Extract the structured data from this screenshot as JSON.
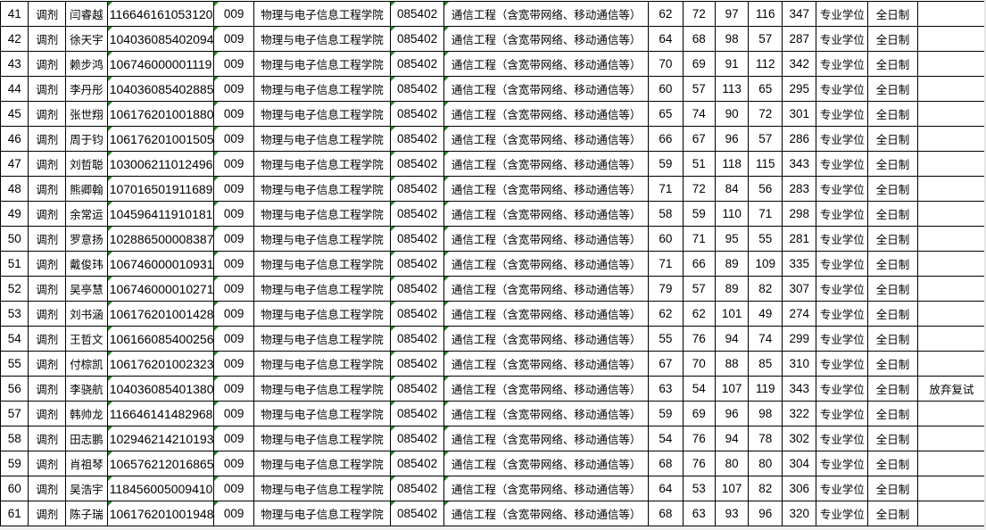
{
  "table": {
    "rows": [
      [
        "41",
        "调剂",
        "闫睿越",
        "116646161053120",
        "009",
        "物理与电子信息工程学院",
        "085402",
        "通信工程（含宽带网络、移动通信等）",
        "62",
        "72",
        "97",
        "116",
        "347",
        "专业学位",
        "全日制",
        ""
      ],
      [
        "42",
        "调剂",
        "徐天宇",
        "104036085402094",
        "009",
        "物理与电子信息工程学院",
        "085402",
        "通信工程（含宽带网络、移动通信等）",
        "64",
        "68",
        "98",
        "57",
        "287",
        "专业学位",
        "全日制",
        ""
      ],
      [
        "43",
        "调剂",
        "赖步鸿",
        "106746000001119",
        "009",
        "物理与电子信息工程学院",
        "085402",
        "通信工程（含宽带网络、移动通信等）",
        "70",
        "69",
        "91",
        "112",
        "342",
        "专业学位",
        "全日制",
        ""
      ],
      [
        "44",
        "调剂",
        "李丹彤",
        "104036085402885",
        "009",
        "物理与电子信息工程学院",
        "085402",
        "通信工程（含宽带网络、移动通信等）",
        "60",
        "57",
        "113",
        "65",
        "295",
        "专业学位",
        "全日制",
        ""
      ],
      [
        "45",
        "调剂",
        "张世翔",
        "106176201001880",
        "009",
        "物理与电子信息工程学院",
        "085402",
        "通信工程（含宽带网络、移动通信等）",
        "65",
        "74",
        "90",
        "72",
        "301",
        "专业学位",
        "全日制",
        ""
      ],
      [
        "46",
        "调剂",
        "周于钧",
        "106176201001505",
        "009",
        "物理与电子信息工程学院",
        "085402",
        "通信工程（含宽带网络、移动通信等）",
        "66",
        "67",
        "96",
        "57",
        "286",
        "专业学位",
        "全日制",
        ""
      ],
      [
        "47",
        "调剂",
        "刘哲聪",
        "103006211012496",
        "009",
        "物理与电子信息工程学院",
        "085402",
        "通信工程（含宽带网络、移动通信等）",
        "59",
        "51",
        "118",
        "115",
        "343",
        "专业学位",
        "全日制",
        ""
      ],
      [
        "48",
        "调剂",
        "熊卿翰",
        "107016501911689",
        "009",
        "物理与电子信息工程学院",
        "085402",
        "通信工程（含宽带网络、移动通信等）",
        "71",
        "72",
        "84",
        "56",
        "283",
        "专业学位",
        "全日制",
        ""
      ],
      [
        "49",
        "调剂",
        "余常运",
        "104596411910181",
        "009",
        "物理与电子信息工程学院",
        "085402",
        "通信工程（含宽带网络、移动通信等）",
        "58",
        "59",
        "110",
        "71",
        "298",
        "专业学位",
        "全日制",
        ""
      ],
      [
        "50",
        "调剂",
        "罗意扬",
        "102886500008387",
        "009",
        "物理与电子信息工程学院",
        "085402",
        "通信工程（含宽带网络、移动通信等）",
        "60",
        "71",
        "95",
        "55",
        "281",
        "专业学位",
        "全日制",
        ""
      ],
      [
        "51",
        "调剂",
        "戴俊玮",
        "106746000010931",
        "009",
        "物理与电子信息工程学院",
        "085402",
        "通信工程（含宽带网络、移动通信等）",
        "71",
        "66",
        "89",
        "109",
        "335",
        "专业学位",
        "全日制",
        ""
      ],
      [
        "52",
        "调剂",
        "吴亭慧",
        "106746000010271",
        "009",
        "物理与电子信息工程学院",
        "085402",
        "通信工程（含宽带网络、移动通信等）",
        "79",
        "57",
        "89",
        "82",
        "307",
        "专业学位",
        "全日制",
        ""
      ],
      [
        "53",
        "调剂",
        "刘书涵",
        "106176201001428",
        "009",
        "物理与电子信息工程学院",
        "085402",
        "通信工程（含宽带网络、移动通信等）",
        "62",
        "62",
        "101",
        "49",
        "274",
        "专业学位",
        "全日制",
        ""
      ],
      [
        "54",
        "调剂",
        "王哲文",
        "106166085400256",
        "009",
        "物理与电子信息工程学院",
        "085402",
        "通信工程（含宽带网络、移动通信等）",
        "55",
        "76",
        "94",
        "74",
        "299",
        "专业学位",
        "全日制",
        ""
      ],
      [
        "55",
        "调剂",
        "付棕凯",
        "106176201002323",
        "009",
        "物理与电子信息工程学院",
        "085402",
        "通信工程（含宽带网络、移动通信等）",
        "67",
        "70",
        "88",
        "85",
        "310",
        "专业学位",
        "全日制",
        ""
      ],
      [
        "56",
        "调剂",
        "李骁航",
        "104036085401380",
        "009",
        "物理与电子信息工程学院",
        "085402",
        "通信工程（含宽带网络、移动通信等）",
        "63",
        "54",
        "107",
        "119",
        "343",
        "专业学位",
        "全日制",
        "放弃复试"
      ],
      [
        "57",
        "调剂",
        "韩帅龙",
        "116646141482968",
        "009",
        "物理与电子信息工程学院",
        "085402",
        "通信工程（含宽带网络、移动通信等）",
        "59",
        "69",
        "96",
        "98",
        "322",
        "专业学位",
        "全日制",
        ""
      ],
      [
        "58",
        "调剂",
        "田志鹏",
        "102946214210193",
        "009",
        "物理与电子信息工程学院",
        "085402",
        "通信工程（含宽带网络、移动通信等）",
        "54",
        "76",
        "94",
        "78",
        "302",
        "专业学位",
        "全日制",
        ""
      ],
      [
        "59",
        "调剂",
        "肖祖琴",
        "106576212016865",
        "009",
        "物理与电子信息工程学院",
        "085402",
        "通信工程（含宽带网络、移动通信等）",
        "68",
        "76",
        "80",
        "80",
        "304",
        "专业学位",
        "全日制",
        ""
      ],
      [
        "60",
        "调剂",
        "吴浩宇",
        "118456005009410",
        "009",
        "物理与电子信息工程学院",
        "085402",
        "通信工程（含宽带网络、移动通信等）",
        "64",
        "53",
        "107",
        "82",
        "306",
        "专业学位",
        "全日制",
        ""
      ],
      [
        "61",
        "调剂",
        "陈子瑞",
        "106176201001948",
        "009",
        "物理与电子信息工程学院",
        "085402",
        "通信工程（含宽带网络、移动通信等）",
        "68",
        "63",
        "93",
        "96",
        "320",
        "专业学位",
        "全日制",
        ""
      ]
    ]
  },
  "colors": {
    "grid": "#000000",
    "error_marker": "#1e8a1e"
  }
}
